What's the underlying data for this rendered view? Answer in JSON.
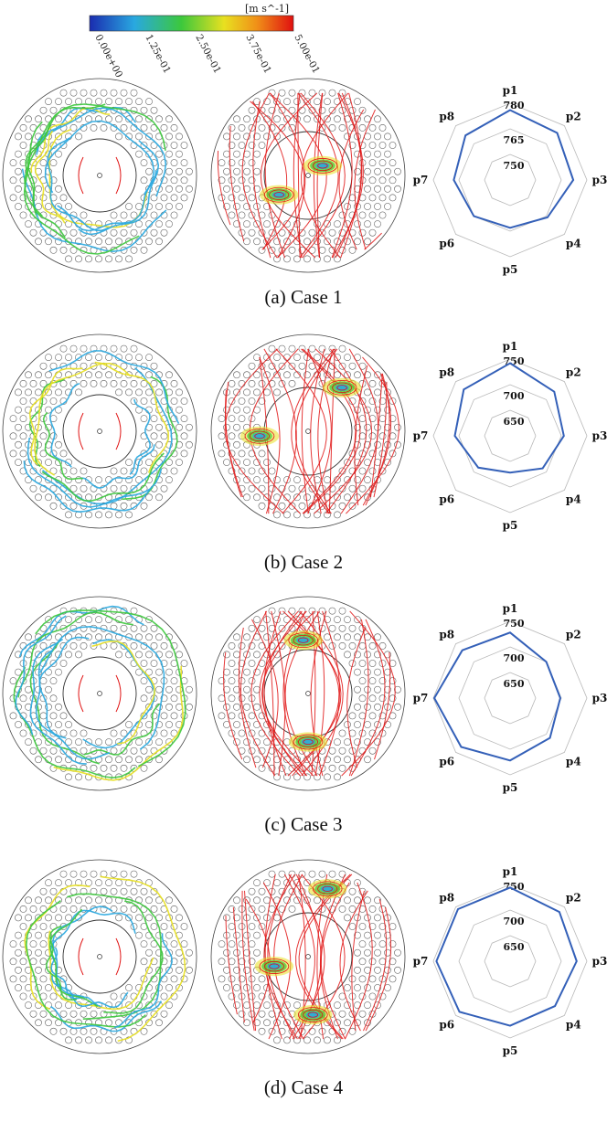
{
  "colorbar": {
    "unit": "[m s^-1]",
    "ticks": [
      "0.00e+00",
      "1.25e-01",
      "2.50e-01",
      "3.75e-01",
      "5.00e-01"
    ],
    "colors": [
      "#1a2cb0",
      "#29a8e0",
      "#3cc83c",
      "#e8e020",
      "#f09018",
      "#e01010"
    ]
  },
  "radar_labels": [
    "p1",
    "p2",
    "p3",
    "p4",
    "p5",
    "p6",
    "p7",
    "p8"
  ],
  "cases": [
    {
      "caption": "(a)  Case  1",
      "rings": [
        "780",
        "765",
        "750"
      ],
      "ring_values": [
        780,
        765,
        750
      ],
      "min_value": 735,
      "values": [
        776,
        774,
        772,
        766,
        763,
        765,
        768,
        772
      ]
    },
    {
      "caption": "(b)  Case  2",
      "rings": [
        "750",
        "700",
        "650"
      ],
      "ring_values": [
        750,
        700,
        650
      ],
      "min_value": 600,
      "values": [
        742,
        722,
        705,
        690,
        672,
        688,
        708,
        728
      ]
    },
    {
      "caption": "(c)  Case  3",
      "rings": [
        "750",
        "700",
        "650"
      ],
      "ring_values": [
        750,
        700,
        650
      ],
      "min_value": 600,
      "values": [
        728,
        700,
        698,
        710,
        722,
        735,
        748,
        732
      ]
    },
    {
      "caption": "(d)  Case  4",
      "rings": [
        "750",
        "700",
        "650"
      ],
      "ring_values": [
        750,
        700,
        650
      ],
      "min_value": 600,
      "values": [
        744,
        736,
        730,
        724,
        726,
        740,
        744,
        744
      ]
    }
  ]
}
